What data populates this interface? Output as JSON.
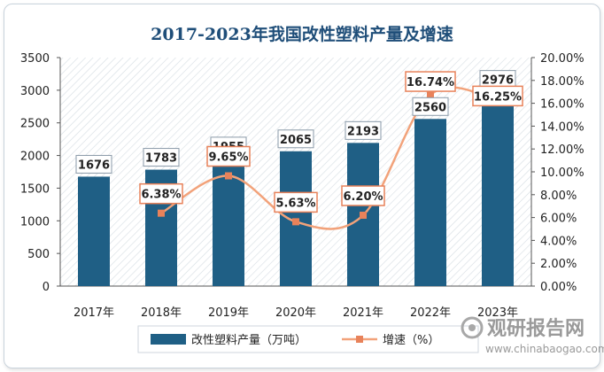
{
  "watermark": {
    "name": "观研报告网",
    "url": "www.chinabaogao.com"
  },
  "colors": {
    "bar": "#1f5f85",
    "line": "#f2a27a",
    "line_marker": "#e8825a",
    "title": "#1f4e79",
    "label_border": "#e8825a"
  },
  "chart_data": {
    "type": "bar",
    "title": "2017-2023年我国改性塑料产量及增速",
    "categories": [
      "2017年",
      "2018年",
      "2019年",
      "2020年",
      "2021年",
      "2022年",
      "2023年"
    ],
    "series": [
      {
        "name": "改性塑料产量（万吨）",
        "type": "bar",
        "axis": "left",
        "values": [
          1676,
          1783,
          1955,
          2065,
          2193,
          2560,
          2976
        ],
        "labels": [
          "1676",
          "1783",
          "1955",
          "2065",
          "2193",
          "2560",
          "2976"
        ]
      },
      {
        "name": "增速（%）",
        "type": "line",
        "axis": "right",
        "smooth": true,
        "values": [
          null,
          6.38,
          9.65,
          5.63,
          6.2,
          16.74,
          16.25
        ],
        "labels": [
          "",
          "6.38%",
          "9.65%",
          "5.63%",
          "6.20%",
          "16.74%",
          "16.25%"
        ]
      }
    ],
    "y_left": {
      "min": 0,
      "max": 3500,
      "step": 500,
      "ticks": [
        "0",
        "500",
        "1000",
        "1500",
        "2000",
        "2500",
        "3000",
        "3500"
      ]
    },
    "y_right": {
      "min": 0,
      "max": 20,
      "step": 2,
      "ticks": [
        "0.00%",
        "2.00%",
        "4.00%",
        "6.00%",
        "8.00%",
        "10.00%",
        "12.00%",
        "14.00%",
        "16.00%",
        "18.00%",
        "20.00%"
      ]
    },
    "grid": false,
    "legend": "bottom"
  }
}
